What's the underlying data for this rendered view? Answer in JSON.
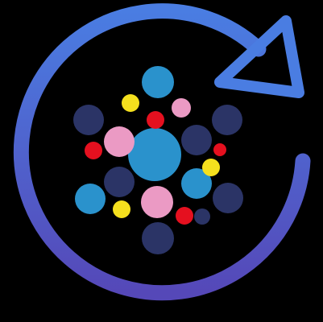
{
  "logo": {
    "icon": "refresh-cycle-with-molecule-dots-icon",
    "colors": {
      "background": "#000000",
      "ring_top": "#4a7de2",
      "ring_bottom": "#5548b8",
      "navy": "#2b3466",
      "sky": "#2a92cc",
      "pink": "#eb9ac4",
      "red": "#e5101f",
      "yellow": "#f5e01e"
    }
  }
}
